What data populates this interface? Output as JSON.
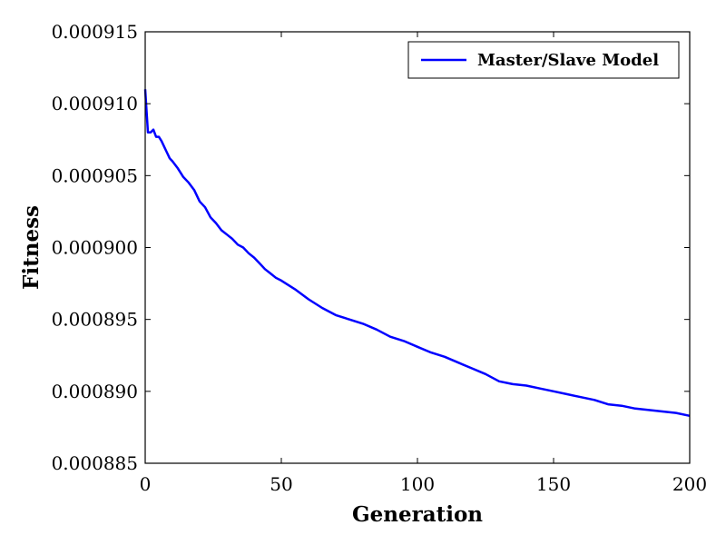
{
  "chart_data": {
    "type": "line",
    "title": "",
    "xlabel": "Generation",
    "ylabel": "Fitness",
    "xlim": [
      0,
      200
    ],
    "ylim": [
      0.000885,
      0.000915
    ],
    "xticks": [
      0,
      50,
      100,
      150,
      200
    ],
    "xtick_labels": [
      "0",
      "50",
      "100",
      "150",
      "200"
    ],
    "yticks": [
      0.000885,
      0.00089,
      0.000895,
      0.0009,
      0.000905,
      0.00091,
      0.000915
    ],
    "ytick_labels": [
      "0.000885",
      "0.000890",
      "0.000895",
      "0.000900",
      "0.000905",
      "0.000910",
      "0.000915"
    ],
    "grid": false,
    "legend_position": "top-right",
    "series": [
      {
        "name": "Master/Slave Model",
        "color": "#0000ff",
        "x": [
          0,
          1,
          2,
          3,
          4,
          5,
          6,
          7,
          8,
          9,
          10,
          12,
          14,
          16,
          18,
          20,
          22,
          24,
          26,
          28,
          30,
          32,
          34,
          36,
          38,
          40,
          42,
          44,
          46,
          48,
          50,
          55,
          60,
          65,
          70,
          75,
          80,
          85,
          90,
          95,
          100,
          105,
          110,
          115,
          120,
          125,
          130,
          135,
          140,
          145,
          150,
          155,
          160,
          165,
          170,
          175,
          180,
          185,
          190,
          195,
          200
        ],
        "y": [
          0.000911,
          0.000908,
          0.000908,
          0.0009082,
          0.0009077,
          0.0009077,
          0.0009074,
          0.000907,
          0.0009066,
          0.0009062,
          0.000906,
          0.0009055,
          0.0009049,
          0.0009045,
          0.000904,
          0.0009032,
          0.0009028,
          0.0009021,
          0.0009017,
          0.0009012,
          0.0009009,
          0.0009006,
          0.0009002,
          0.0009,
          0.0008996,
          0.0008993,
          0.0008989,
          0.0008985,
          0.0008982,
          0.0008979,
          0.0008977,
          0.0008971,
          0.0008964,
          0.0008958,
          0.0008953,
          0.000895,
          0.0008947,
          0.0008943,
          0.0008938,
          0.0008935,
          0.0008931,
          0.0008927,
          0.0008924,
          0.000892,
          0.0008916,
          0.0008912,
          0.0008907,
          0.0008905,
          0.0008904,
          0.0008902,
          0.00089,
          0.0008898,
          0.0008896,
          0.0008894,
          0.0008891,
          0.000889,
          0.0008888,
          0.0008887,
          0.0008886,
          0.0008885,
          0.0008883
        ]
      }
    ]
  }
}
